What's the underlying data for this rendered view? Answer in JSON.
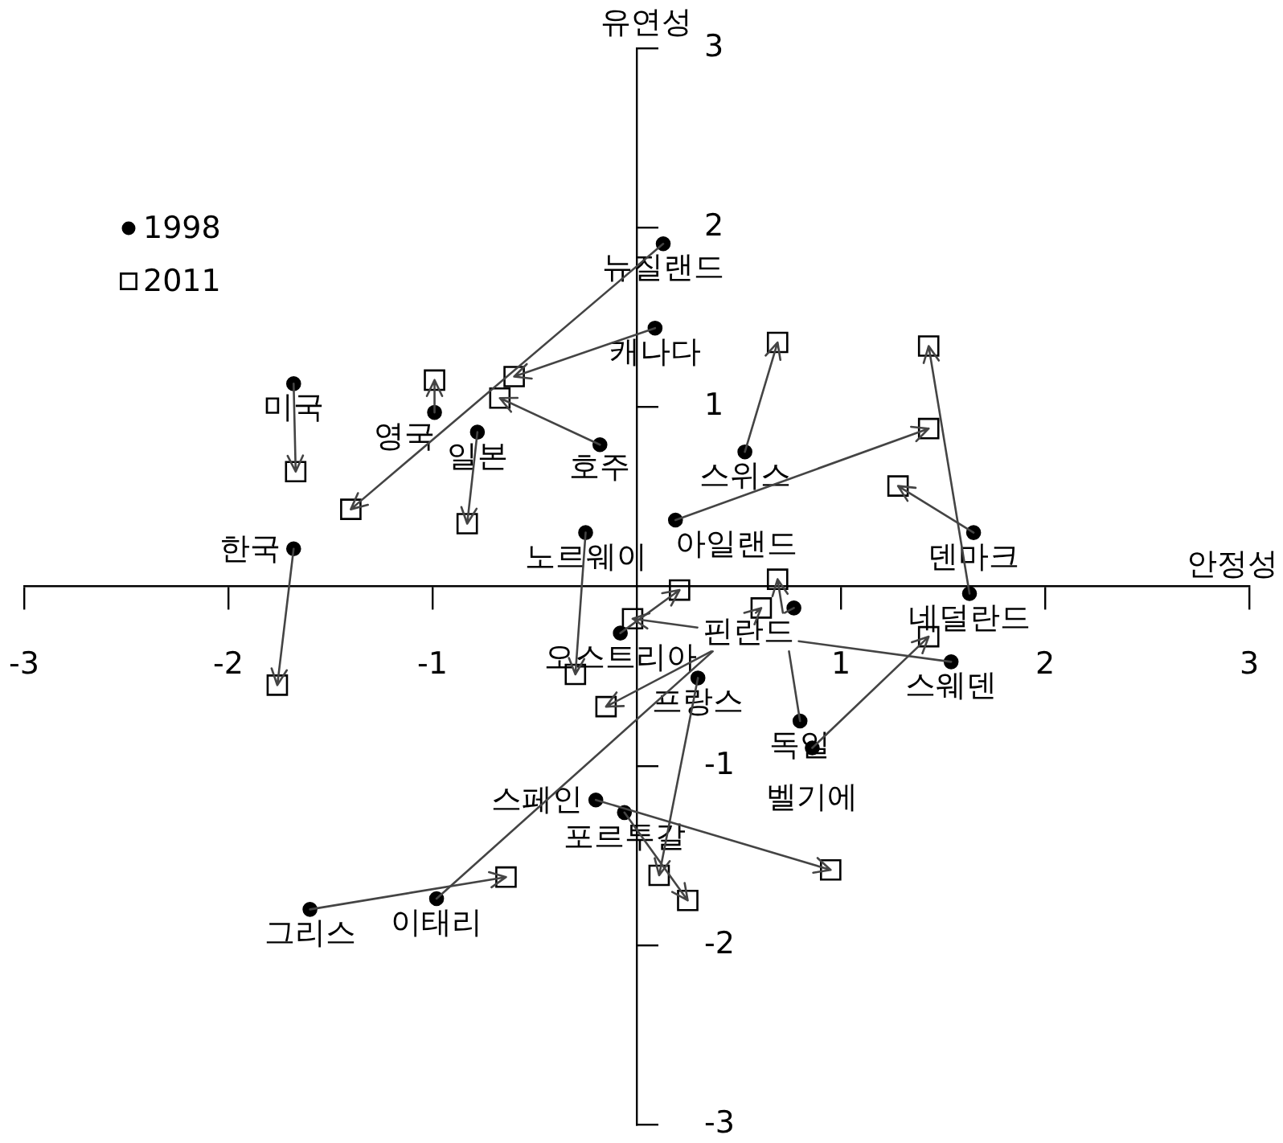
{
  "chart_data": {
    "type": "scatter",
    "xlabel": "안정성",
    "ylabel": "유연성",
    "xlim": [
      -3,
      3
    ],
    "ylim": [
      -3,
      3
    ],
    "xticks": [
      -3,
      -2,
      -1,
      1,
      2,
      3
    ],
    "yticks": [
      -3,
      -2,
      -1,
      1,
      2,
      3
    ],
    "grid": false,
    "legend": "top left",
    "series": [
      {
        "name": "1998",
        "color": "#000000",
        "marker": "circle",
        "x": [
          -1.68,
          -0.78,
          -0.99,
          -0.18,
          -1.68,
          0.13,
          0.09,
          -0.25,
          0.19,
          0.53,
          1.65,
          1.63,
          1.54,
          0.8,
          0.86,
          0.77,
          -0.08,
          0.3,
          -0.06,
          -0.2,
          -1.6,
          -0.98
        ],
        "values": [
          1.13,
          0.86,
          0.97,
          0.79,
          0.21,
          1.91,
          1.44,
          0.3,
          0.37,
          0.75,
          0.3,
          -0.04,
          -0.42,
          -0.75,
          -0.9,
          -0.12,
          -0.26,
          -0.51,
          -1.26,
          -1.19,
          -1.8,
          -1.74
        ]
      },
      {
        "name": "2011",
        "color": "#000000",
        "marker": "square",
        "x": [
          -1.67,
          -0.83,
          -0.99,
          -0.67,
          -1.76,
          -1.4,
          -0.6,
          -0.3,
          1.43,
          0.69,
          1.28,
          1.43,
          -0.02,
          0.69,
          1.43,
          -0.15,
          0.21,
          0.11,
          0.25,
          0.95,
          -0.64,
          0.61
        ],
        "values": [
          0.64,
          0.35,
          1.15,
          1.05,
          -0.55,
          0.43,
          1.17,
          -0.49,
          0.88,
          1.36,
          0.56,
          1.34,
          -0.18,
          0.04,
          -0.28,
          -0.67,
          -0.02,
          -1.61,
          -1.75,
          -1.58,
          -1.62,
          -0.12
        ]
      }
    ],
    "annotations": [
      {
        "text": "미국",
        "x": -1.68,
        "y": 1.13
      },
      {
        "text": "일본",
        "x": -0.78,
        "y": 0.86
      },
      {
        "text": "영국",
        "x": -0.99,
        "y": 0.97
      },
      {
        "text": "호주",
        "x": -0.18,
        "y": 0.79
      },
      {
        "text": "한국",
        "x": -1.68,
        "y": 0.21
      },
      {
        "text": "뉴질랜드",
        "x": 0.13,
        "y": 1.91
      },
      {
        "text": "캐나다",
        "x": 0.09,
        "y": 1.44
      },
      {
        "text": "노르웨이",
        "x": -0.25,
        "y": 0.3
      },
      {
        "text": "아일랜드",
        "x": 0.19,
        "y": 0.37
      },
      {
        "text": "스위스",
        "x": 0.53,
        "y": 0.75
      },
      {
        "text": "덴마크",
        "x": 1.65,
        "y": 0.3
      },
      {
        "text": "네덜란드",
        "x": 1.63,
        "y": -0.04
      },
      {
        "text": "스웨덴",
        "x": 1.54,
        "y": -0.42
      },
      {
        "text": "독일",
        "x": 0.8,
        "y": -0.75
      },
      {
        "text": "벨기에",
        "x": 0.86,
        "y": -0.9
      },
      {
        "text": "핀란드",
        "x": 0.77,
        "y": -0.12
      },
      {
        "text": "오스트리아",
        "x": -0.08,
        "y": -0.26
      },
      {
        "text": "프랑스",
        "x": 0.3,
        "y": -0.51
      },
      {
        "text": "포르투갈",
        "x": -0.06,
        "y": -1.26
      },
      {
        "text": "스페인",
        "x": -0.2,
        "y": -1.19
      },
      {
        "text": "그리스",
        "x": -1.6,
        "y": -1.8
      },
      {
        "text": "이태리",
        "x": -0.98,
        "y": -1.74
      }
    ]
  }
}
